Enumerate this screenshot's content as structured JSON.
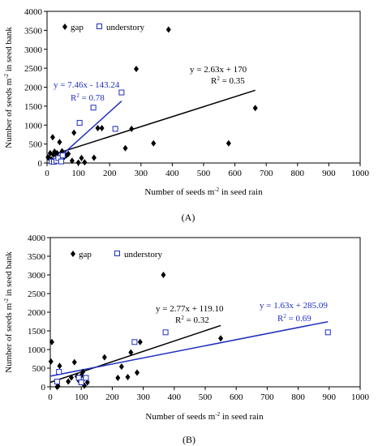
{
  "colors": {
    "gap": "#000000",
    "understory": "#1f2fbf",
    "frame": "#000000"
  },
  "chart_data": [
    {
      "type": "scatter",
      "panel_label": "(A)",
      "xlabel": "Number of seeds m",
      "xlabel_sup": "-2",
      "xlabel_tail": " in seed rain",
      "ylabel": "Number of seeds m",
      "ylabel_sup": "-2",
      "ylabel_tail": " in seed bank",
      "xlim": [
        0,
        1000
      ],
      "ylim": [
        0,
        4000
      ],
      "xticks": [
        0,
        100,
        200,
        300,
        400,
        500,
        600,
        700,
        800,
        900,
        1000
      ],
      "yticks": [
        0,
        500,
        1000,
        1500,
        2000,
        2500,
        3000,
        3500,
        4000
      ],
      "grid": false,
      "legend_position": "top-left",
      "series": [
        {
          "name": "gap",
          "marker": "diamond",
          "points": [
            [
              3,
              150
            ],
            [
              8,
              120
            ],
            [
              10,
              260
            ],
            [
              14,
              90
            ],
            [
              16,
              50
            ],
            [
              18,
              680
            ],
            [
              20,
              220
            ],
            [
              24,
              300
            ],
            [
              28,
              220
            ],
            [
              32,
              260
            ],
            [
              38,
              140
            ],
            [
              40,
              550
            ],
            [
              48,
              310
            ],
            [
              55,
              160
            ],
            [
              62,
              200
            ],
            [
              68,
              240
            ],
            [
              80,
              60
            ],
            [
              86,
              800
            ],
            [
              100,
              10
            ],
            [
              110,
              130
            ],
            [
              120,
              20
            ],
            [
              150,
              140
            ],
            [
              162,
              920
            ],
            [
              175,
              920
            ],
            [
              220,
              900
            ],
            [
              250,
              390
            ],
            [
              270,
              900
            ],
            [
              285,
              2480
            ],
            [
              340,
              520
            ],
            [
              388,
              3520
            ],
            [
              580,
              520
            ],
            [
              665,
              1450
            ]
          ],
          "trend": {
            "slope": 2.63,
            "intercept": 170,
            "x_range": [
              15,
              665
            ],
            "equation": "y = 2.63x + 170",
            "r2_label": "R",
            "r2_sup": "2",
            "r2_value": " = 0.35"
          }
        },
        {
          "name": "understory",
          "marker": "square",
          "points": [
            [
              15,
              40
            ],
            [
              22,
              30
            ],
            [
              30,
              60
            ],
            [
              36,
              130
            ],
            [
              45,
              40
            ],
            [
              50,
              200
            ],
            [
              104,
              1060
            ],
            [
              148,
              1460
            ],
            [
              218,
              900
            ],
            [
              238,
              1860
            ]
          ],
          "trend": {
            "slope": 7.46,
            "intercept": -143.24,
            "x_range": [
              20,
              238
            ],
            "equation": "y = 7.46x - 143.24",
            "r2_label": "R",
            "r2_sup": "2",
            "r2_value": " = 0.78"
          }
        }
      ]
    },
    {
      "type": "scatter",
      "panel_label": "(B)",
      "xlabel": "Number of seeds m",
      "xlabel_sup": "-2",
      "xlabel_tail": " in seed rain",
      "ylabel": "Number of seeds m",
      "ylabel_sup": "-2",
      "ylabel_tail": " in seed bank",
      "xlim": [
        0,
        1000
      ],
      "ylim": [
        0,
        4000
      ],
      "xticks": [
        0,
        100,
        200,
        300,
        400,
        500,
        600,
        700,
        800,
        900,
        1000
      ],
      "yticks": [
        0,
        500,
        1000,
        1500,
        2000,
        2500,
        3000,
        3500,
        4000
      ],
      "grid": false,
      "legend_position": "top-left",
      "series": [
        {
          "name": "gap",
          "marker": "diamond",
          "points": [
            [
              2,
              680
            ],
            [
              5,
              1200
            ],
            [
              22,
              0
            ],
            [
              25,
              20
            ],
            [
              30,
              560
            ],
            [
              58,
              140
            ],
            [
              68,
              250
            ],
            [
              78,
              660
            ],
            [
              86,
              280
            ],
            [
              92,
              170
            ],
            [
              100,
              300
            ],
            [
              105,
              400
            ],
            [
              110,
              30
            ],
            [
              112,
              240
            ],
            [
              120,
              120
            ],
            [
              175,
              790
            ],
            [
              218,
              240
            ],
            [
              230,
              540
            ],
            [
              250,
              260
            ],
            [
              260,
              920
            ],
            [
              280,
              380
            ],
            [
              290,
              1200
            ],
            [
              365,
              3000
            ],
            [
              550,
              1300
            ]
          ],
          "trend": {
            "slope": 2.77,
            "intercept": 119.1,
            "x_range": [
              0,
              550
            ],
            "equation": "y = 2.77x + 119.10",
            "r2_label": "R",
            "r2_sup": "2",
            "r2_value": " = 0.32"
          }
        },
        {
          "name": "understory",
          "marker": "square",
          "points": [
            [
              22,
              140
            ],
            [
              28,
              400
            ],
            [
              92,
              240
            ],
            [
              100,
              120
            ],
            [
              115,
              240
            ],
            [
              272,
              1200
            ],
            [
              372,
              1460
            ],
            [
              896,
              1460
            ]
          ],
          "trend": {
            "slope": 1.63,
            "intercept": 285.09,
            "x_range": [
              0,
              896
            ],
            "equation": "y = 1.63x + 285.09",
            "r2_label": "R",
            "r2_sup": "2",
            "r2_value": " = 0.69"
          }
        }
      ]
    }
  ]
}
